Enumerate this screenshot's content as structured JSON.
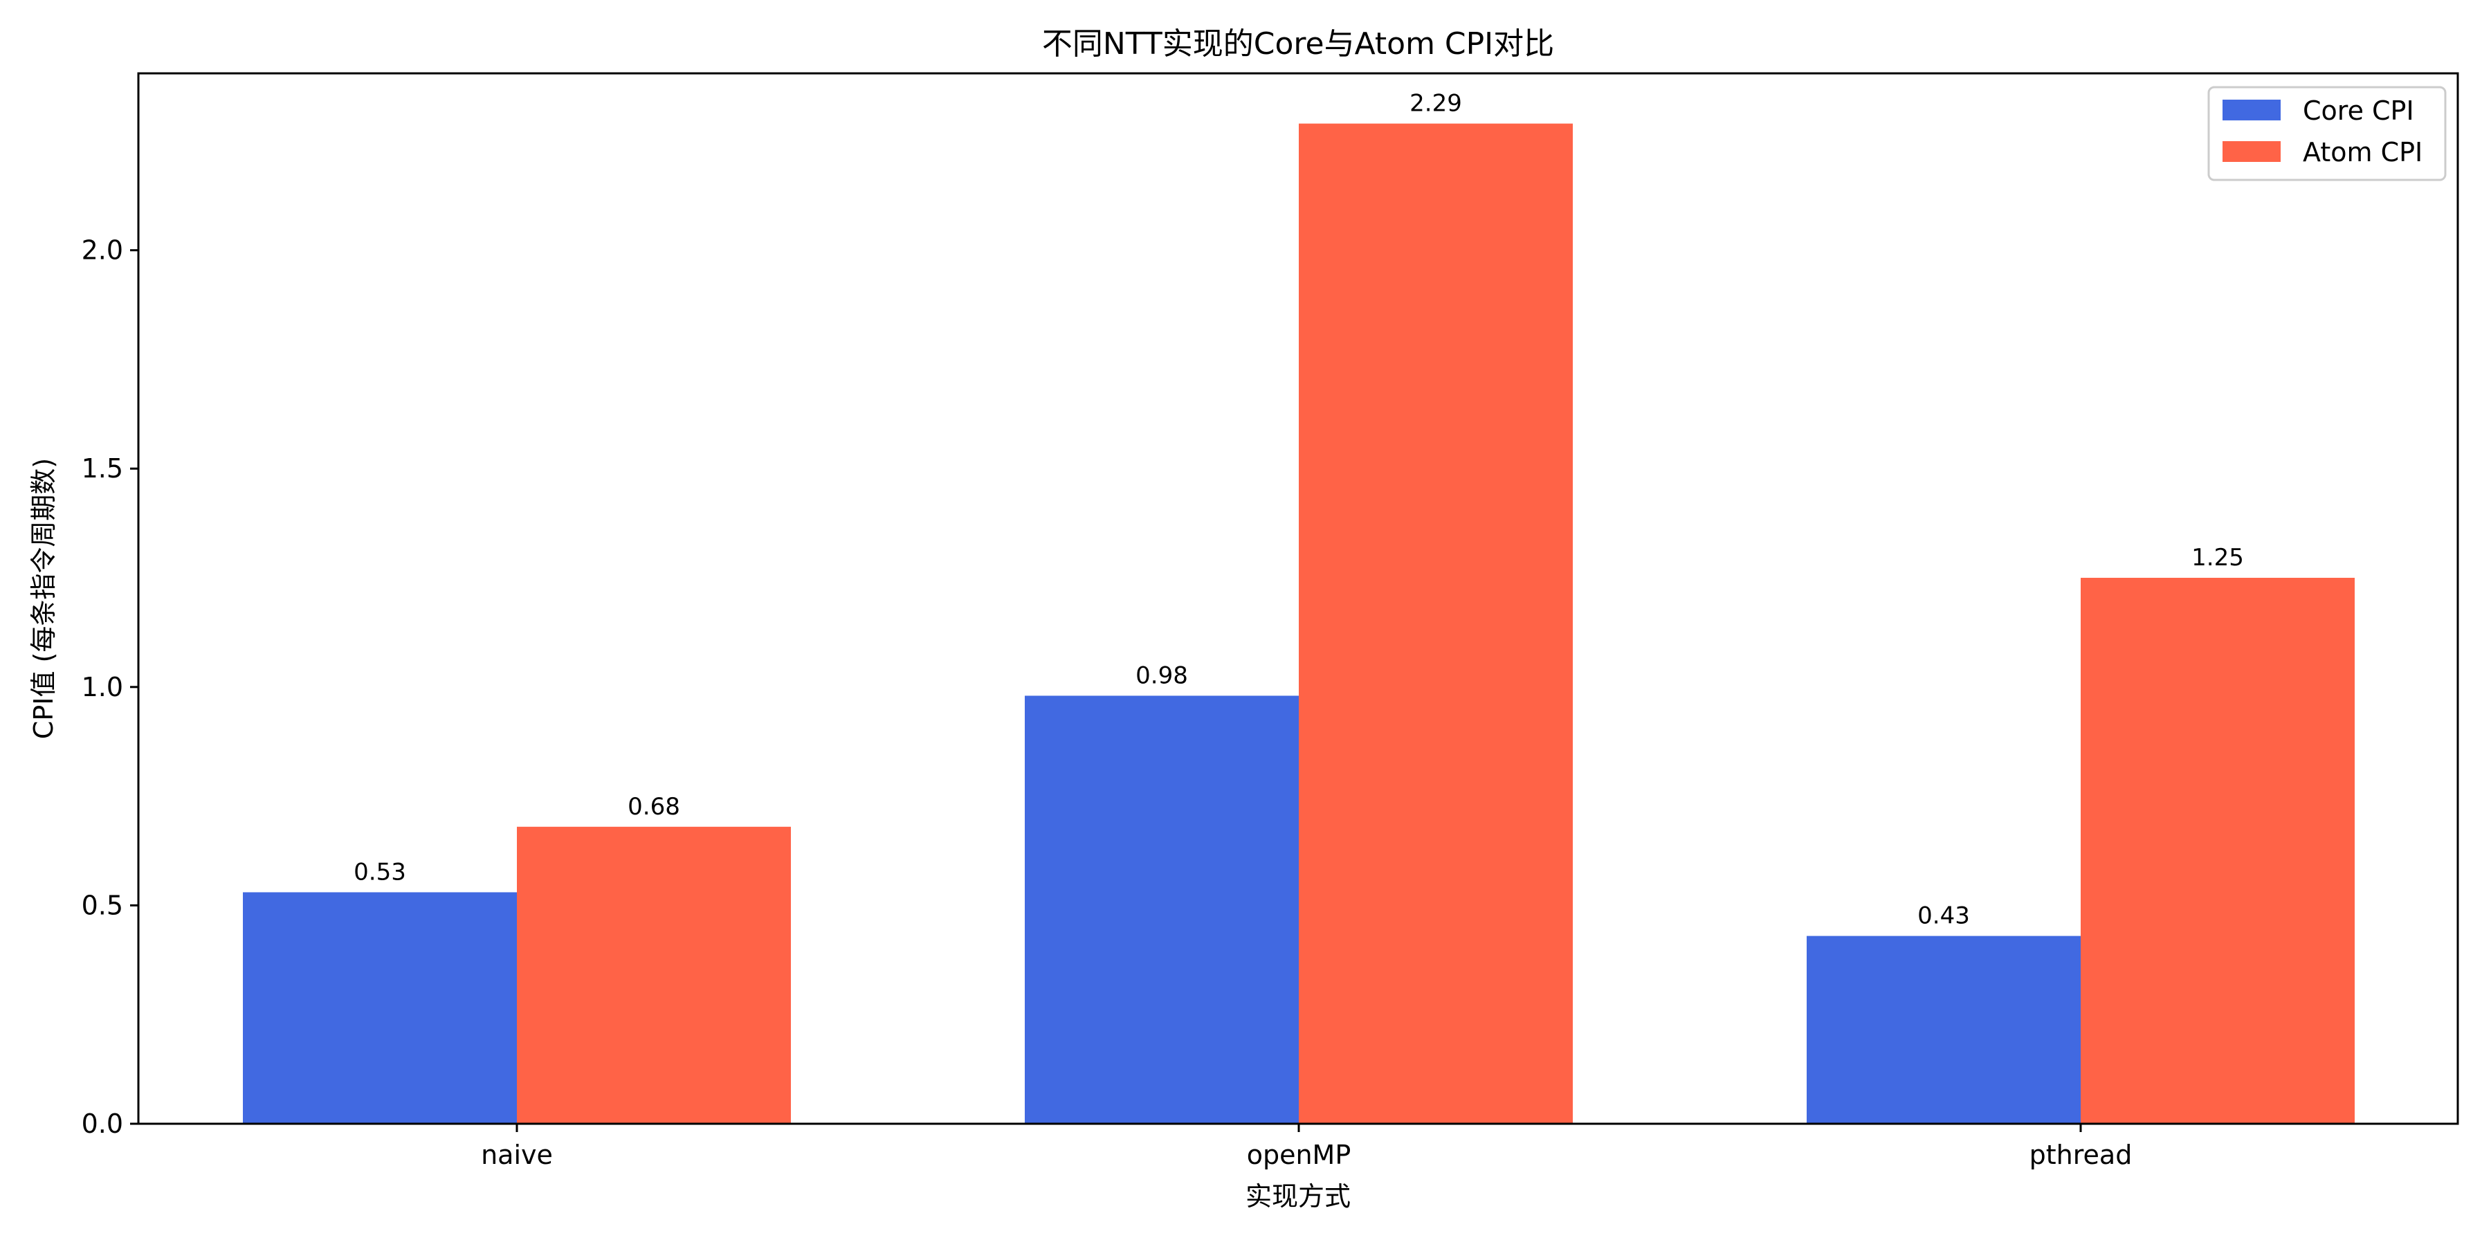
{
  "chart_data": {
    "type": "bar",
    "title": "不同NTT实现的Core与Atom CPI对比",
    "xlabel": "实现方式",
    "ylabel": "CPI值 (每条指令周期数)",
    "categories": [
      "naive",
      "openMP",
      "pthread"
    ],
    "series": [
      {
        "name": "Core CPI",
        "values": [
          0.53,
          0.98,
          0.43
        ],
        "color": "#4169E1"
      },
      {
        "name": "Atom CPI",
        "values": [
          0.68,
          2.29,
          1.25
        ],
        "color": "#FF6347"
      }
    ],
    "data_labels": [
      [
        "0.53",
        "0.98",
        "0.43"
      ],
      [
        "0.68",
        "2.29",
        "1.25"
      ]
    ],
    "ylim": [
      0,
      2.405
    ],
    "yticks": [
      0.0,
      0.5,
      1.0,
      1.5,
      2.0
    ],
    "ytick_labels": [
      "0.0",
      "0.5",
      "1.0",
      "1.5",
      "2.0"
    ],
    "grid": false,
    "legend_position": "top-right"
  }
}
